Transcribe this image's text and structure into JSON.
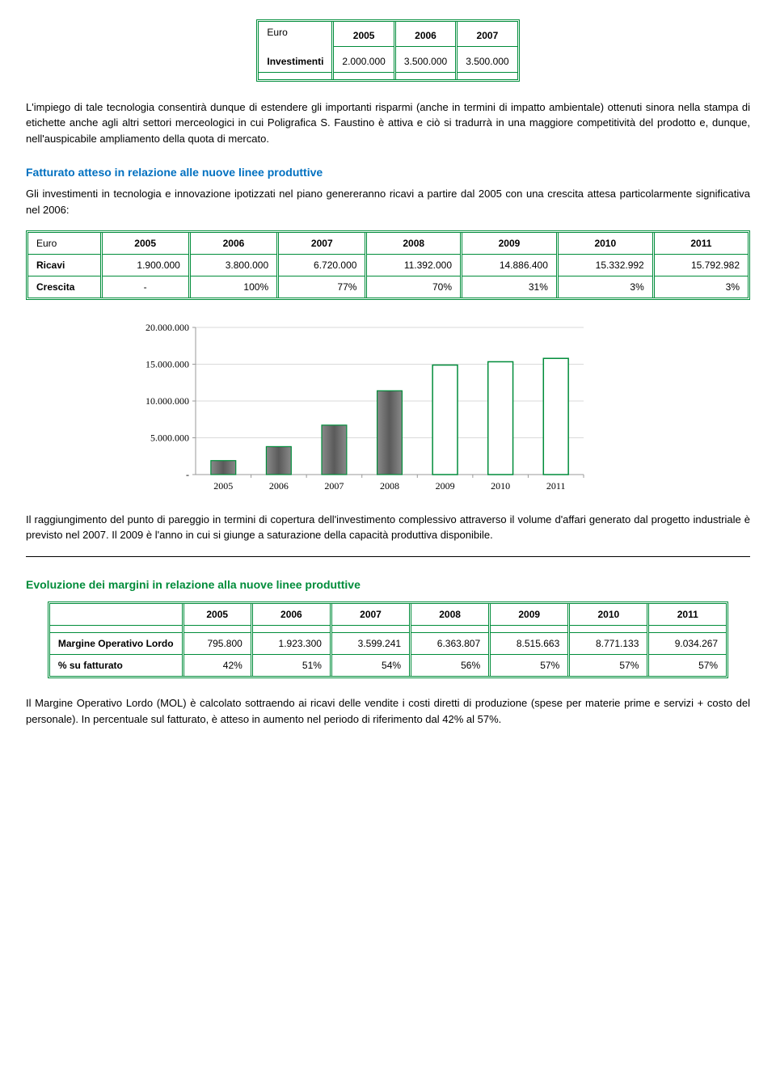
{
  "investments_table": {
    "corner_label": "Euro",
    "row_label": "Investimenti",
    "years": [
      "2005",
      "2006",
      "2007"
    ],
    "values": [
      "2.000.000",
      "3.500.000",
      "3.500.000"
    ]
  },
  "paragraph1": "L'impiego di tale tecnologia consentirà dunque di estendere gli importanti risparmi (anche in termini di impatto ambientale) ottenuti sinora nella stampa di etichette anche agli altri settori merceologici in cui Poligrafica S. Faustino è attiva e ciò si tradurrà in una maggiore competitività del prodotto e, dunque, nell'auspicabile ampliamento della quota di mercato.",
  "heading_fatturato": "Fatturato atteso in relazione alle nuove linee produttive",
  "paragraph2": "Gli investimenti in tecnologia e innovazione ipotizzati nel piano genereranno ricavi a partire dal 2005 con una crescita attesa particolarmente significativa nel 2006:",
  "ricavi_table": {
    "corner_label": "Euro",
    "row_ricavi": "Ricavi",
    "row_crescita": "Crescita",
    "years": [
      "2005",
      "2006",
      "2007",
      "2008",
      "2009",
      "2010",
      "2011"
    ],
    "ricavi_values": [
      "1.900.000",
      "3.800.000",
      "6.720.000",
      "11.392.000",
      "14.886.400",
      "15.332.992",
      "15.792.982"
    ],
    "crescita_values": [
      "-",
      "100%",
      "77%",
      "70%",
      "31%",
      "3%",
      "3%"
    ]
  },
  "chart": {
    "type": "bar",
    "categories": [
      "2005",
      "2006",
      "2007",
      "2008",
      "2009",
      "2010",
      "2011"
    ],
    "values": [
      1900000,
      3800000,
      6720000,
      11392000,
      14886400,
      15332992,
      15792982
    ],
    "bar_fill_colors": [
      "#6b6b6b",
      "#6b6b6b",
      "#6b6b6b",
      "#6b6b6b",
      "#ffffff",
      "#ffffff",
      "#ffffff"
    ],
    "bar_border_color": "#008c3a",
    "y_ticks": [
      "-",
      "5.000.000",
      "10.000.000",
      "15.000.000",
      "20.000.000"
    ],
    "y_tick_values": [
      0,
      5000000,
      10000000,
      15000000,
      20000000
    ],
    "ylim": [
      0,
      20000000
    ],
    "axis_color": "#999999",
    "grid_color": "#d9d9d9",
    "label_fontsize": 12,
    "tick_fontsize": 12,
    "bar_width": 0.45,
    "background_color": "#ffffff"
  },
  "paragraph3": "Il raggiungimento del punto di pareggio in termini di copertura dell'investimento complessivo attraverso il volume d'affari generato dal progetto industriale è previsto nel 2007. Il 2009 è l'anno in cui si giunge a saturazione della capacità produttiva disponibile.",
  "heading_evoluzione": "Evoluzione dei margini in relazione alla nuove linee produttive",
  "margini_table": {
    "years": [
      "2005",
      "2006",
      "2007",
      "2008",
      "2009",
      "2010",
      "2011"
    ],
    "row1_label": "Margine Operativo Lordo",
    "row1_values": [
      "795.800",
      "1.923.300",
      "3.599.241",
      "6.363.807",
      "8.515.663",
      "8.771.133",
      "9.034.267"
    ],
    "row2_label": "% su fatturato",
    "row2_values": [
      "42%",
      "51%",
      "54%",
      "56%",
      "57%",
      "57%",
      "57%"
    ]
  },
  "paragraph4": "Il Margine Operativo Lordo (MOL) è calcolato sottraendo ai ricavi delle vendite i costi diretti di produzione (spese per materie prime e servizi + costo del personale). In percentuale sul fatturato, è atteso in aumento nel periodo di riferimento dal 42% al 57%."
}
